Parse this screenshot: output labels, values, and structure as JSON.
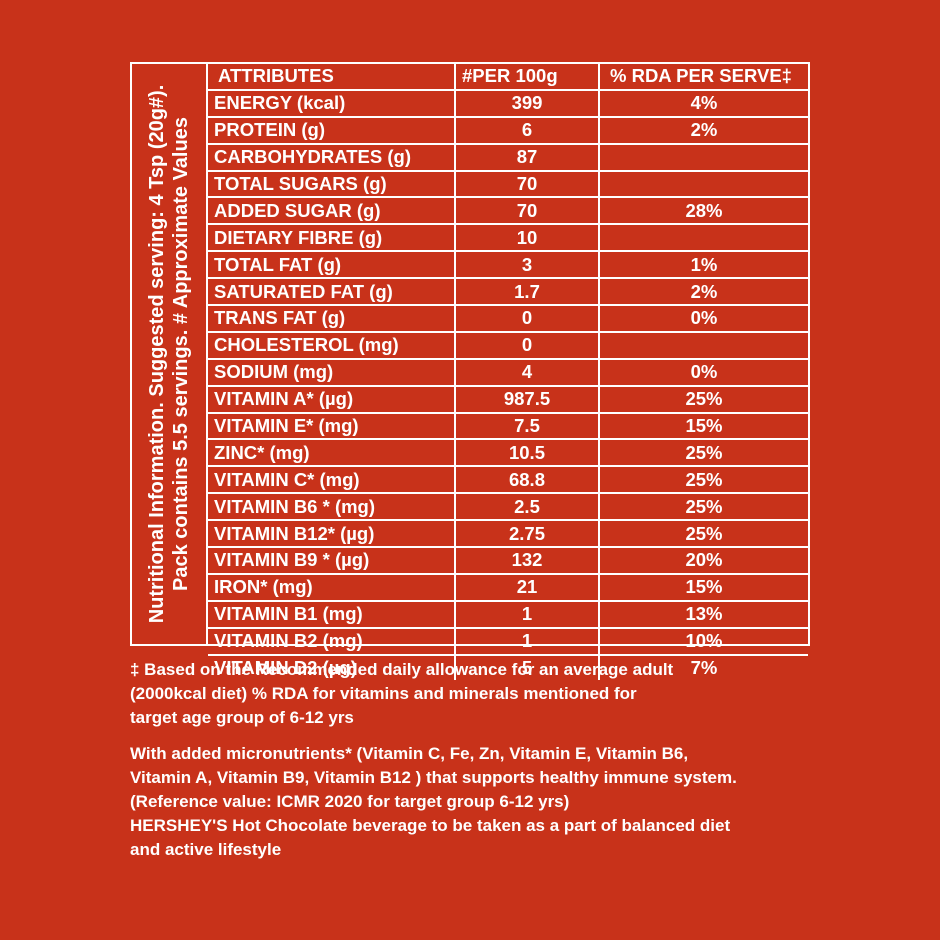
{
  "side_label": {
    "line1": "Nutritional Information. Suggested serving: 4 Tsp (20g#).",
    "line2": "Pack contains 5.5 servings. # Approximate Values"
  },
  "table": {
    "headers": [
      "ATTRIBUTES",
      "#PER 100g",
      "% RDA PER SERVE‡"
    ],
    "rows": [
      {
        "attribute": "ENERGY (kcal)",
        "per_100g": "399",
        "rda": "4%"
      },
      {
        "attribute": "PROTEIN (g)",
        "per_100g": "6",
        "rda": "2%"
      },
      {
        "attribute": "CARBOHYDRATES (g)",
        "per_100g": "87",
        "rda": ""
      },
      {
        "attribute": "TOTAL SUGARS (g)",
        "per_100g": "70",
        "rda": ""
      },
      {
        "attribute": "ADDED SUGAR (g)",
        "per_100g": "70",
        "rda": "28%"
      },
      {
        "attribute": "DIETARY FIBRE (g)",
        "per_100g": "10",
        "rda": ""
      },
      {
        "attribute": "TOTAL FAT (g)",
        "per_100g": "3",
        "rda": "1%"
      },
      {
        "attribute": "SATURATED FAT (g)",
        "per_100g": "1.7",
        "rda": "2%"
      },
      {
        "attribute": "TRANS FAT (g)",
        "per_100g": "0",
        "rda": "0%"
      },
      {
        "attribute": "CHOLESTEROL (mg)",
        "per_100g": "0",
        "rda": ""
      },
      {
        "attribute": "SODIUM (mg)",
        "per_100g": "4",
        "rda": "0%"
      },
      {
        "attribute": "VITAMIN A* (µg)",
        "per_100g": "987.5",
        "rda": "25%"
      },
      {
        "attribute": "VITAMIN E* (mg)",
        "per_100g": "7.5",
        "rda": "15%"
      },
      {
        "attribute": "ZINC* (mg)",
        "per_100g": "10.5",
        "rda": "25%"
      },
      {
        "attribute": "VITAMIN C* (mg)",
        "per_100g": "68.8",
        "rda": "25%"
      },
      {
        "attribute": "VITAMIN B6 * (mg)",
        "per_100g": "2.5",
        "rda": "25%"
      },
      {
        "attribute": "VITAMIN B12* (µg)",
        "per_100g": "2.75",
        "rda": "25%"
      },
      {
        "attribute": "VITAMIN B9 * (µg)",
        "per_100g": "132",
        "rda": "20%"
      },
      {
        "attribute": "IRON* (mg)",
        "per_100g": "21",
        "rda": "15%"
      },
      {
        "attribute": "VITAMIN B1 (mg)",
        "per_100g": "1",
        "rda": "13%"
      },
      {
        "attribute": "VITAMIN B2 (mg)",
        "per_100g": "1",
        "rda": "10%"
      },
      {
        "attribute": "VITAMIN D2 (µg)",
        "per_100g": "5",
        "rda": "7%"
      }
    ]
  },
  "footnotes": {
    "rda_note": [
      "‡ Based on the Recommended daily allowance for an average adult",
      "(2000kcal diet) % RDA for vitamins and minerals mentioned for",
      "target age group of 6-12 yrs"
    ],
    "micronutrient_note": [
      "With added micronutrients* (Vitamin C, Fe, Zn, Vitamin E, Vitamin B6,",
      "Vitamin A, Vitamin B9, Vitamin B12 ) that supports healthy immune system.",
      "(Reference value: ICMR 2020 for target group 6-12 yrs)",
      "HERSHEY'S Hot Chocolate beverage to be taken as a part of balanced diet",
      "and active lifestyle"
    ]
  },
  "colors": {
    "background": "#c8321a",
    "text": "#ffffff"
  }
}
